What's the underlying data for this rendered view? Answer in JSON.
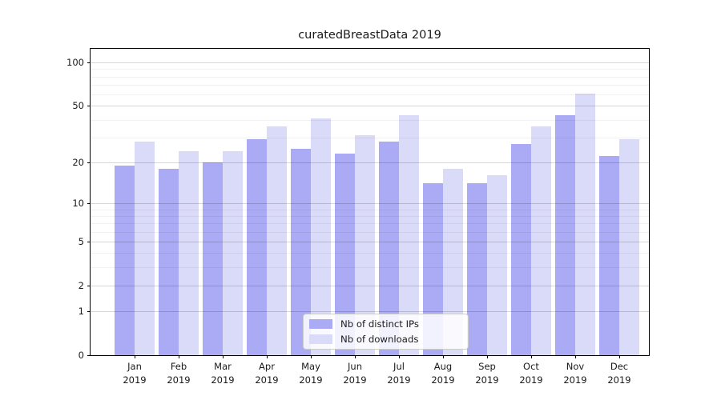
{
  "chart_data": {
    "type": "bar",
    "title": "curatedBreastData 2019",
    "scale": "log1p",
    "categories": [
      "Jan 2019",
      "Feb 2019",
      "Mar 2019",
      "Apr 2019",
      "May 2019",
      "Jun 2019",
      "Jul 2019",
      "Aug 2019",
      "Sep 2019",
      "Oct 2019",
      "Nov 2019",
      "Dec 2019"
    ],
    "series": [
      {
        "name": "Nb of distinct IPs",
        "color": "#aaaaf5",
        "values": [
          19,
          18,
          20,
          29,
          25,
          23,
          28,
          14,
          14,
          27,
          43,
          22
        ]
      },
      {
        "name": "Nb of downloads",
        "color": "#dadaf9",
        "values": [
          28,
          24,
          24,
          36,
          41,
          31,
          43,
          18,
          16,
          36,
          61,
          29
        ]
      }
    ],
    "yticks": [
      0,
      1,
      2,
      5,
      10,
      20,
      50,
      100
    ],
    "minor_yticks": [
      3,
      4,
      6,
      7,
      8,
      9,
      30,
      40,
      60,
      70,
      80,
      90
    ],
    "ylim": [
      0,
      124.5
    ],
    "grid": "on",
    "legend_position": "bottom-center",
    "colors": {
      "distinct_ips": "#aaaaf5",
      "downloads": "#dadaf9",
      "major_grid": "#d6d6d6",
      "minor_grid": "#ececec",
      "axis": "#000000",
      "text": "#1a1a1a"
    }
  }
}
